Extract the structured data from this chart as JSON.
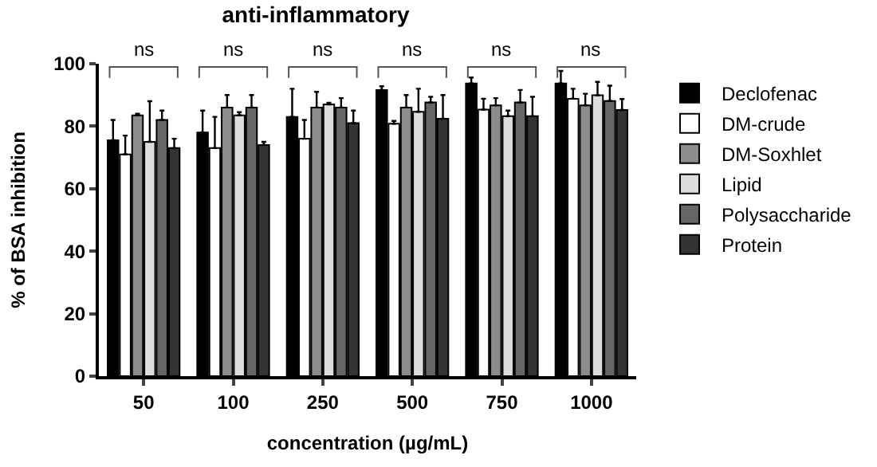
{
  "chart_data": {
    "type": "bar",
    "title": "anti-inflammatory",
    "xlabel": "concentration (µg/mL)",
    "ylabel": "% of BSA inhibition",
    "categories": [
      "50",
      "100",
      "250",
      "500",
      "750",
      "1000"
    ],
    "series": [
      {
        "name": "Declofenac",
        "color": "#000000",
        "values": [
          75.5,
          78,
          83,
          91.6,
          93.7,
          93.7
        ],
        "errors": [
          [
            75.5,
            82
          ],
          [
            78,
            85
          ],
          [
            83,
            92
          ],
          [
            91.6,
            92.8
          ],
          [
            93.7,
            95.6
          ],
          [
            93.7,
            97.7
          ]
        ]
      },
      {
        "name": "DM-crude",
        "color": "#ffffff",
        "values": [
          71,
          73,
          76,
          80.8,
          85.3,
          88.8
        ],
        "errors": [
          [
            71,
            77
          ],
          [
            73,
            83
          ],
          [
            76,
            82
          ],
          [
            80.8,
            81.7
          ],
          [
            85.3,
            88.8
          ],
          [
            88.8,
            92
          ]
        ]
      },
      {
        "name": "DM-Soxhlet",
        "color": "#8c8c8c",
        "values": [
          83.5,
          86,
          86,
          86,
          86.7,
          86.7
        ],
        "errors": [
          [
            83.5,
            84
          ],
          [
            86,
            90
          ],
          [
            86,
            91
          ],
          [
            86,
            90
          ],
          [
            86.7,
            89
          ],
          [
            86.7,
            90.4
          ]
        ]
      },
      {
        "name": "Lipid",
        "color": "#dddddd",
        "values": [
          75,
          83.5,
          87,
          84.6,
          83.2,
          89.9
        ],
        "errors": [
          [
            75,
            88
          ],
          [
            83.5,
            84.5
          ],
          [
            87,
            87.5
          ],
          [
            84.6,
            92
          ],
          [
            83.2,
            85
          ],
          [
            89.9,
            94.2
          ]
        ]
      },
      {
        "name": "Polysaccharide",
        "color": "#666666",
        "values": [
          82,
          86,
          86,
          87.6,
          87.6,
          88.1
        ],
        "errors": [
          [
            82,
            85
          ],
          [
            86,
            90
          ],
          [
            86,
            89
          ],
          [
            87.6,
            89.4
          ],
          [
            87.6,
            91.6
          ],
          [
            88.1,
            93
          ]
        ]
      },
      {
        "name": "Protein",
        "color": "#333333",
        "values": [
          73,
          74,
          81,
          82.4,
          83.2,
          85.2
        ],
        "errors": [
          [
            73,
            76
          ],
          [
            74,
            75
          ],
          [
            81,
            85
          ],
          [
            82.4,
            90
          ],
          [
            83.2,
            89.4
          ],
          [
            85.2,
            88.7
          ]
        ]
      }
    ],
    "ylim": [
      0,
      100
    ],
    "yticks": [
      0,
      20,
      40,
      60,
      80,
      100
    ],
    "grid": false,
    "legend": "right",
    "annotations": [
      "ns",
      "ns",
      "ns",
      "ns",
      "ns",
      "ns"
    ]
  }
}
